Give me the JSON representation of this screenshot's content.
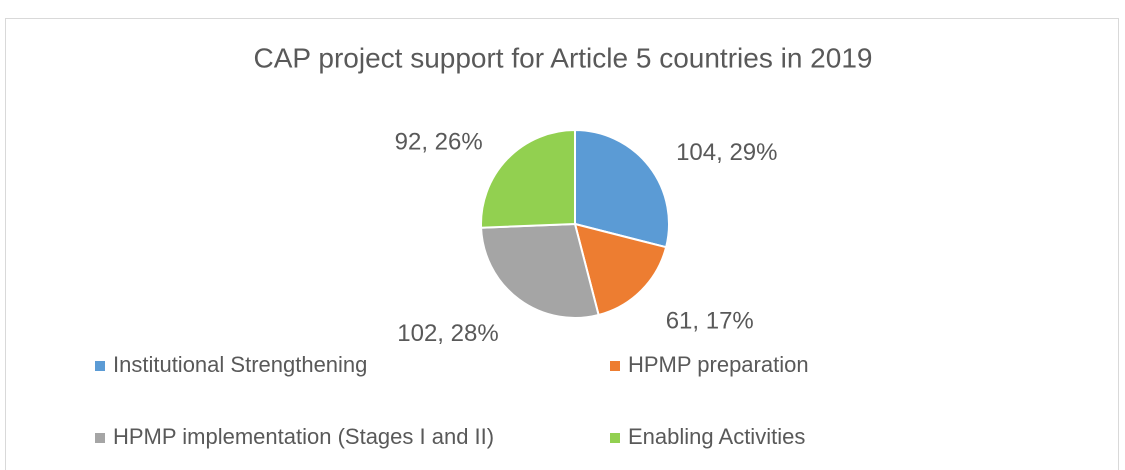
{
  "chart_data": {
    "type": "pie",
    "title": "CAP project support for Article 5 countries in 2019",
    "categories": [
      "Institutional Strengthening",
      "HPMP preparation",
      "HPMP implementation (Stages I and II)",
      "Enabling Activities"
    ],
    "values": [
      104,
      61,
      102,
      92
    ],
    "value_labels": [
      "104, 29%",
      "61, 17%",
      "102, 28%",
      "92, 26%"
    ],
    "colors": [
      "#5b9bd5",
      "#ed7d31",
      "#a5a5a5",
      "#92d050"
    ],
    "legend": "bottom"
  }
}
